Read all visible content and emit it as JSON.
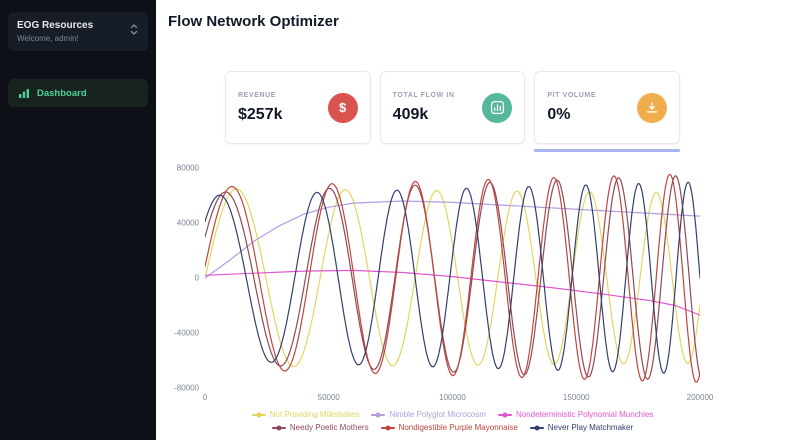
{
  "sidebar": {
    "org_name": "EOG Resources",
    "org_subtitle": "Welcome, admin!",
    "accent_color": "#4fd195",
    "nav": [
      {
        "label": "Dashboard",
        "icon": "bar-chart-icon"
      }
    ]
  },
  "header": {
    "title": "Flow Network Optimizer"
  },
  "stat_cards": [
    {
      "label": "REVENUE",
      "value": "$257k",
      "icon": "dollar-icon",
      "icon_bg": "#d9534f"
    },
    {
      "label": "TOTAL FLOW IN",
      "value": "409k",
      "icon": "flow-in-icon",
      "icon_bg": "#55b79e"
    },
    {
      "label": "PIT VOLUME",
      "value": "0%",
      "icon": "pit-fill-icon",
      "icon_bg": "#f0ad4e",
      "progress_percent": 0,
      "progress_color": "#aab2f0"
    }
  ],
  "chart_data": {
    "type": "line",
    "title": "",
    "xlabel": "",
    "ylabel": "",
    "xlim": [
      0,
      200000
    ],
    "ylim": [
      -80000,
      80000
    ],
    "x_ticks": [
      0,
      50000,
      100000,
      150000,
      200000
    ],
    "y_ticks": [
      80000,
      40000,
      0,
      -40000,
      -80000
    ],
    "grid": false,
    "legend_position": "bottom",
    "series": [
      {
        "name": "Not Providing Milkshakes",
        "color": "#e3d55f",
        "type": "chirp",
        "a0": 65000,
        "a1": 62000,
        "f0": 3.8,
        "f1": 8.1,
        "phase": 0.0
      },
      {
        "name": "Nimble Polyglot Microcosm",
        "color": "#b29de0",
        "type": "points",
        "points": [
          [
            0,
            0
          ],
          [
            10000,
            13000
          ],
          [
            20000,
            27000
          ],
          [
            30000,
            38000
          ],
          [
            40000,
            46500
          ],
          [
            50000,
            51500
          ],
          [
            60000,
            54500
          ],
          [
            80000,
            56000
          ],
          [
            100000,
            55000
          ],
          [
            120000,
            53000
          ],
          [
            140000,
            51000
          ],
          [
            160000,
            49000
          ],
          [
            180000,
            47000
          ],
          [
            200000,
            45000
          ]
        ]
      },
      {
        "name": "Nondeterministic Polynomial Munchies",
        "color": "#e255d1",
        "type": "points",
        "points": [
          [
            0,
            2000
          ],
          [
            20000,
            3500
          ],
          [
            40000,
            5000
          ],
          [
            60000,
            5500
          ],
          [
            80000,
            4000
          ],
          [
            100000,
            1000
          ],
          [
            120000,
            -3000
          ],
          [
            140000,
            -7000
          ],
          [
            160000,
            -11500
          ],
          [
            180000,
            -16500
          ],
          [
            190000,
            -20000
          ],
          [
            200000,
            -27000
          ]
        ]
      },
      {
        "name": "Needy Poetic Mothers",
        "color": "#8e4a56",
        "type": "chirp",
        "a0": 62000,
        "a1": 75000,
        "f0": 4.0,
        "f1": 9.24,
        "phase": 0.08
      },
      {
        "name": "Nondigestible Purple Mayonnaise",
        "color": "#c0453f",
        "type": "chirp",
        "a0": 66000,
        "a1": 76000,
        "f0": 4.1,
        "f1": 9.5,
        "phase": 0.02
      },
      {
        "name": "Never Play Matchmaker",
        "color": "#32406e",
        "type": "chirp",
        "a0": 60000,
        "a1": 70000,
        "f0": 4.3,
        "f1": 10.46,
        "phase": 0.12
      }
    ]
  }
}
